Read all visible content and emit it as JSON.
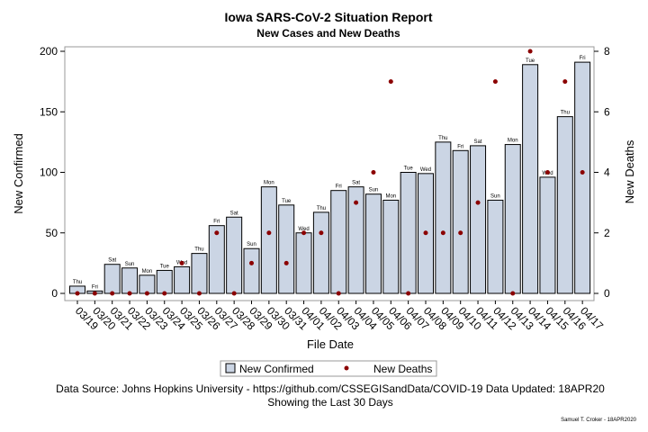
{
  "chart_data": {
    "type": "bar",
    "title": "Iowa SARS-CoV-2 Situation Report",
    "subtitle": "New Cases and New Deaths",
    "xlabel": "File Date",
    "ylabel": "New Confirmed",
    "y2label": "New Deaths",
    "ylim": [
      0,
      200
    ],
    "y2lim": [
      0,
      8
    ],
    "yticks": [
      "0",
      "50",
      "100",
      "150",
      "200"
    ],
    "y2ticks": [
      "0",
      "2",
      "4",
      "6",
      "8"
    ],
    "categories": [
      "03/19",
      "03/20",
      "03/21",
      "03/22",
      "03/23",
      "03/24",
      "03/25",
      "03/26",
      "03/27",
      "03/28",
      "03/29",
      "03/30",
      "03/31",
      "04/01",
      "04/02",
      "04/03",
      "04/04",
      "04/05",
      "04/06",
      "04/07",
      "04/08",
      "04/09",
      "04/10",
      "04/11",
      "04/12",
      "04/13",
      "04/14",
      "04/15",
      "04/16",
      "04/17"
    ],
    "day_labels": [
      "Thu",
      "Fri",
      "Sat",
      "Sun",
      "Mon",
      "Tue",
      "Wed",
      "Thu",
      "Fri",
      "Sat",
      "Sun",
      "Mon",
      "Tue",
      "Wed",
      "Thu",
      "Fri",
      "Sat",
      "Sun",
      "Mon",
      "Tue",
      "Wed",
      "Thu",
      "Fri",
      "Sat",
      "Sun",
      "Mon",
      "Tue",
      "Wed",
      "Thu",
      "Fri"
    ],
    "series": [
      {
        "name": "New Confirmed",
        "type": "bar",
        "axis": "left",
        "color": "#cbd5e4",
        "values": [
          6,
          2,
          24,
          21,
          15,
          19,
          22,
          33,
          56,
          63,
          37,
          88,
          73,
          50,
          67,
          85,
          88,
          82,
          77,
          100,
          99,
          125,
          118,
          122,
          77,
          123,
          189,
          96,
          146,
          191
        ]
      },
      {
        "name": "New Deaths",
        "type": "scatter",
        "axis": "right",
        "color": "#8b0000",
        "values": [
          0,
          0,
          0,
          0,
          0,
          0,
          1,
          0,
          2,
          0,
          1,
          2,
          1,
          2,
          2,
          0,
          3,
          4,
          7,
          0,
          2,
          2,
          2,
          3,
          7,
          0,
          8,
          4,
          7,
          4
        ]
      }
    ],
    "legend_position": "bottom",
    "grid": false
  },
  "footer": {
    "source": "Data Source: Johns Hopkins University - https://github.com/CSSEGISandData/COVID-19 Data Updated: 18APR20",
    "range_note": "Showing the Last 30 Days",
    "credit": "Samuel T. Croker - 18APR2020"
  }
}
